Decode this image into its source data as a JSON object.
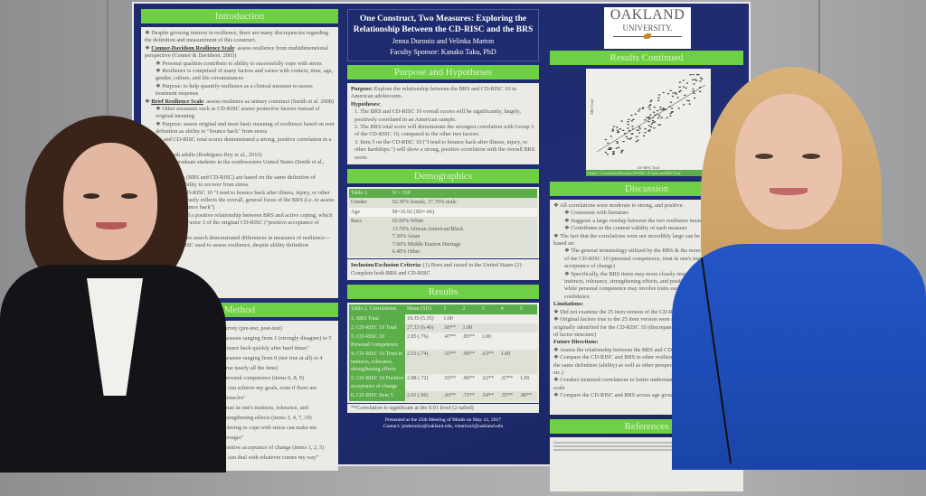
{
  "poster": {
    "title": "One Construct, Two Measures: Exploring the Relationship Between the CD-RISC and the BRS",
    "authors": "Jenna Duronio and Velinka Marton",
    "sponsor": "Faculty Sponsor: Kanako Taku, PhD",
    "logo": {
      "line1": "OAKLAND",
      "line2": "UNIVERSITY."
    },
    "introduction": {
      "header": "Introduction",
      "items": [
        {
          "level": 0,
          "text": "Despite growing interest in resilience, there are many discrepancies regarding the definition and measurement of this construct."
        },
        {
          "level": 0,
          "lead": "Connor-Davidson Resilience Scale",
          "text": ": assess resilience from multidimensional perspective (Connor & Davidson, 2003)"
        },
        {
          "level": 1,
          "text": "Personal qualities contribute to ability to successfully cope with stress"
        },
        {
          "level": 1,
          "text": "Resilience is comprised of many factors and varies with context, time, age, gender, culture, and life circumstances"
        },
        {
          "level": 1,
          "text": "Purpose: to help quantify resilience as a clinical measure to assess treatment response"
        },
        {
          "level": 0,
          "lead": "Brief Resilience Scale",
          "text": ": assess resilience as unitary construct (Smith et al. 2008)"
        },
        {
          "level": 1,
          "text": "Other measures such as CD-RISC assess protective factors instead of original meaning"
        },
        {
          "level": 1,
          "text": "Purpose: assess original and most basic meaning of resilience based on root definition as ability to \"bounce back\" from stress"
        },
        {
          "level": 0,
          "text": "BRS and CD-RISC total scores demonstrated a strong, positive correlation in a sample of:"
        },
        {
          "level": 1,
          "text": "Spanish adults (Rodriguez-Rey et al., 2016)"
        },
        {
          "level": 1,
          "text": "Undergraduate students in the southwestern United States (Smith et al., 2008)"
        },
        {
          "level": 0,
          "text": "Both measures (BRS and CD-RISC) are based on the same definition of resilience as the ability to recover from stress."
        },
        {
          "level": 0,
          "text": "Item 5 on the CD-RISC 10 \"I tend to bounce back after illness, injury, or other hardships\" most closely reflects the overall, general focus of the BRS (i.e. to assess one's \"ability to bounce back\")"
        },
        {
          "level": 0,
          "text": "(2012) identified a positive relationship between BRS and active coping, which closely resembles Factor 3 of the original CD-RISC (\"positive acceptance of change\")"
        },
        {
          "level": 0,
          "text": "(2016): Literature search demonstrated differences in measures of resilience—i.e. BRS & CD-RISC used to assess resilience, despite ability definition"
        }
      ]
    },
    "method": {
      "header": "Method",
      "items": [
        "survey (pre-test, post-test)",
        "measure ranging from 1 (strongly disagree) to 5",
        "bounce back quickly after hard times\"",
        "measure ranging from 0 (not true at all) to 4 (true nearly all the time)",
        "Personal competence (items 6, 8, 9)",
        "\"I can achieve my goals, even if there are obstacles\"",
        "Trust in one's instincts, tolerance, and strengthening effects (items 3, 4, 7, 10)",
        "\"Having to cope with stress can make me stronger\"",
        "Positive acceptance of change (items 1, 2, 5)",
        "\"I can deal with whatever comes my way\""
      ]
    },
    "purpose": {
      "header": "Purpose and Hypotheses",
      "purpose_label": "Purpose:",
      "purpose_text": " Explore the relationship between the BRS and CD-RISC 10 in American adolescents.",
      "hyp_label": "Hypotheses:",
      "hypotheses": [
        "1. The BRS and CD-RISC 10 overall scores will be significantly, largely, positively correlated in an American sample.",
        "2. The BRS total score will demonstrate the strongest correlation with Group 3 of the CD-RISC 10, compared to the other two factors.",
        "3. Item 5 on the CD-RISC 10 (\"I tend to bounce back after illness, injury, or other hardships.\") will show a strong, positive correlation with the overall BRS score."
      ]
    },
    "demographics": {
      "header": "Demographics",
      "table_label": "Table 1.",
      "n": "N = 358",
      "rows": [
        {
          "label": "Gender",
          "value": "62.30% female, 37.70% male"
        },
        {
          "label": "Age",
          "value": "M=16.92 (SD=.66)"
        },
        {
          "label": "Race",
          "value": "65.60% White\n13.70% African American/Black\n7.30% Asian\n7.00% Middle Eastern Heritage\n6.40% Other"
        }
      ],
      "criteria_label": "Inclusion/Exclusion Criteria:",
      "criteria_text": " (1) Born and raised in the United States (2) Complete both BRS and CD-RISC"
    },
    "results": {
      "header": "Results",
      "columns": [
        "Table 2. Correlations",
        "Mean (SD)",
        "1",
        "2",
        "3",
        "4",
        "5"
      ],
      "rows": [
        [
          "1. BRS Total",
          "19.35 (5.35)",
          "1.00",
          "",
          "",
          "",
          ""
        ],
        [
          "2. CD-RISC 10 Total",
          "27.33 (6.46)",
          ".60**",
          "1.00",
          "",
          "",
          ""
        ],
        [
          "3. CD-RISC 10 Personal Competence",
          "2.85 (.76)",
          ".47**",
          ".85**",
          "1.00",
          "",
          ""
        ],
        [
          "4. CD-RISC 10 Trust in instincts, tolerance, strengthening effects",
          "2.53 (.74)",
          ".55**",
          ".90**",
          ".63**",
          "1.00",
          ""
        ],
        [
          "5. CD-RISC 10 Positive acceptance of change",
          "2.88 (.72)",
          ".55**",
          ".86**",
          ".62**",
          ".67**",
          "1.00"
        ],
        [
          "6. CD-RISC Item 5",
          "2.91 (.96)",
          ".43**",
          ".71**",
          ".54**",
          ".55**",
          ".80**"
        ]
      ],
      "footnote": "**Correlation is significant at the 0.01 level (2-tailed)"
    },
    "footer": {
      "line1": "Presented at the 25th Meeting of Minds on May 12, 2017",
      "line2": "Contact: jmduronio@oakland.edu, vmarton2@oakland.edu"
    },
    "results_continued": {
      "header": "Results Continued",
      "x_label": "CD-RISC Total",
      "y_label": "BRS Total",
      "caption": "Graph 1. Correlation Between CD-RISC 10 Total and BRS Total"
    },
    "discussion": {
      "header": "Discussion",
      "items": [
        {
          "level": 0,
          "text": "All correlations were moderate to strong, and positive."
        },
        {
          "level": 1,
          "text": "Consistent with literature"
        },
        {
          "level": 1,
          "text": "Suggests a large overlap between the two resilience measures"
        },
        {
          "level": 1,
          "text": "Contributes to the content validity of each measure"
        },
        {
          "level": 0,
          "text": "The fact that the correlations were not incredibly large can be accounted for based on:"
        },
        {
          "level": 1,
          "text": "The general terminology utilized by the BRS & the more specific content of the CD-RISC 10 (personal competence, trust in one's instincts, positive acceptance of change)"
        },
        {
          "level": 1,
          "text": "Specifically, the BRS items may more closely resemble trust in one's instincts, tolerance, strengthening effects, and positive acceptance of change while personal competence may involve traits such as hardiness or self-confidence"
        },
        {
          "level": 2,
          "text": "Limitations:"
        },
        {
          "level": 0,
          "text": "Did not examine the 25 item version of the CD-RISC"
        },
        {
          "level": 0,
          "text": "Original factors true to the 25 item version were assessed; a single factor was originally identified for the CD-RISC 10 (discrepancies in the literature in terms of factor structure)"
        },
        {
          "level": 2,
          "text": "Future Directions:"
        },
        {
          "level": 0,
          "text": "Assess the relationship between the BRS and CD-RISC (25 item measure)"
        },
        {
          "level": 0,
          "text": "Compare the CD-RISC and BRS to other resilience measures developed from the same definition (ability) as well as other perspectives (trait, process-oriented, etc.)"
        },
        {
          "level": 0,
          "text": "Conduct itemized correlations to better understand characteristics for each scale"
        },
        {
          "level": 0,
          "text": "Compare the CD-RISC and BRS across age groups"
        }
      ]
    },
    "references": {
      "header": "References"
    }
  },
  "colors": {
    "poster_bg": "#1f2b6e",
    "section_header": "#6fcf45",
    "table_green": "#5cae4b",
    "panel": "#e9ebe4",
    "right_person_top": "#1f4fc0"
  }
}
